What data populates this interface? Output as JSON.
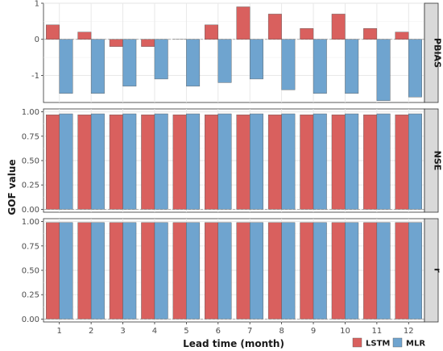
{
  "chart_data": {
    "type": "bar",
    "layout": "faceted-vertical",
    "xlabel": "Lead time (month)",
    "ylabel": "GOF value",
    "categories": [
      "1",
      "2",
      "3",
      "4",
      "5",
      "6",
      "7",
      "8",
      "9",
      "10",
      "11",
      "12"
    ],
    "legend": {
      "position": "bottom-right",
      "entries": [
        {
          "name": "LSTM",
          "color": "#d9605e"
        },
        {
          "name": "MLR",
          "color": "#6fa4cf"
        }
      ]
    },
    "colors": {
      "LSTM": "#d9605e",
      "MLR": "#6fa4cf",
      "strip_bg": "#d9d9d9",
      "grid": "#e6e6e6",
      "zero_line": "#999999"
    },
    "grid": true,
    "facets": [
      {
        "name": "PBIAS",
        "ylim": [
          -1.75,
          1.0
        ],
        "yticks": [
          -1,
          0,
          1
        ],
        "series": [
          {
            "name": "LSTM",
            "values": [
              0.4,
              0.2,
              -0.2,
              -0.2,
              0.0,
              0.4,
              0.9,
              0.7,
              0.3,
              0.7,
              0.3,
              0.2
            ]
          },
          {
            "name": "MLR",
            "values": [
              -1.5,
              -1.5,
              -1.3,
              -1.1,
              -1.3,
              -1.2,
              -1.1,
              -1.4,
              -1.5,
              -1.5,
              -1.7,
              -1.6
            ]
          }
        ]
      },
      {
        "name": "NSE",
        "ylim": [
          -0.03,
          1.03
        ],
        "yticks": [
          0.0,
          0.25,
          0.5,
          0.75,
          1.0
        ],
        "ytick_labels": [
          "0.00",
          "0.25",
          "0.50",
          "0.75",
          "1.00"
        ],
        "series": [
          {
            "name": "LSTM",
            "values": [
              0.97,
              0.97,
              0.97,
              0.97,
              0.97,
              0.97,
              0.97,
              0.97,
              0.97,
              0.97,
              0.97,
              0.97
            ]
          },
          {
            "name": "MLR",
            "values": [
              0.98,
              0.98,
              0.98,
              0.98,
              0.98,
              0.98,
              0.98,
              0.98,
              0.98,
              0.98,
              0.98,
              0.98
            ]
          }
        ]
      },
      {
        "name": "r",
        "ylim": [
          -0.03,
          1.03
        ],
        "yticks": [
          0.0,
          0.25,
          0.5,
          0.75,
          1.0
        ],
        "ytick_labels": [
          "0.00",
          "0.25",
          "0.50",
          "0.75",
          "1.00"
        ],
        "series": [
          {
            "name": "LSTM",
            "values": [
              0.99,
              0.99,
              0.99,
              0.99,
              0.99,
              0.99,
              0.99,
              0.99,
              0.99,
              0.99,
              0.99,
              0.99
            ]
          },
          {
            "name": "MLR",
            "values": [
              0.99,
              0.99,
              0.99,
              0.99,
              0.99,
              0.99,
              0.99,
              0.99,
              0.99,
              0.99,
              0.99,
              0.99
            ]
          }
        ]
      }
    ]
  }
}
